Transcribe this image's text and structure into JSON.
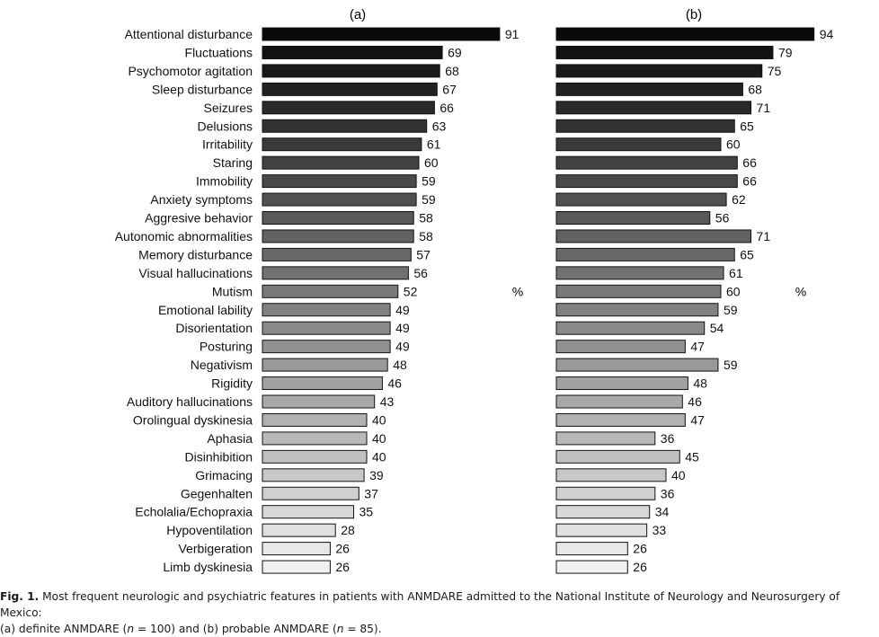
{
  "chart_data": [
    {
      "type": "bar",
      "orientation": "horizontal",
      "panel_label": "(a)",
      "unit_label": "%",
      "categories": [
        "Attentional disturbance",
        "Fluctuations",
        "Psychomotor agitation",
        "Sleep disturbance",
        "Seizures",
        "Delusions",
        "Irritability",
        "Staring",
        "Immobility",
        "Anxiety symptoms",
        "Aggresive behavior",
        "Autonomic abnormalities",
        "Memory disturbance",
        "Visual hallucinations",
        "Mutism",
        "Emotional lability",
        "Disorientation",
        "Posturing",
        "Negativism",
        "Rigidity",
        "Auditory hallucinations",
        "Orolingual dyskinesia",
        "Aphasia",
        "Disinhibition",
        "Grimacing",
        "Gegenhalten",
        "Echolalia/Echopraxia",
        "Hypoventilation",
        "Verbigeration",
        "Limb dyskinesia"
      ],
      "values": [
        91,
        69,
        68,
        67,
        66,
        63,
        61,
        60,
        59,
        59,
        58,
        58,
        57,
        56,
        52,
        49,
        49,
        49,
        48,
        46,
        43,
        40,
        40,
        40,
        39,
        37,
        35,
        28,
        26,
        26
      ],
      "xlim": [
        0,
        100
      ],
      "grid": false
    },
    {
      "type": "bar",
      "orientation": "horizontal",
      "panel_label": "(b)",
      "unit_label": "%",
      "categories": [
        "Attentional disturbance",
        "Fluctuations",
        "Psychomotor agitation",
        "Sleep disturbance",
        "Seizures",
        "Delusions",
        "Irritability",
        "Staring",
        "Immobility",
        "Anxiety symptoms",
        "Aggresive behavior",
        "Autonomic abnormalities",
        "Memory disturbance",
        "Visual hallucinations",
        "Mutism",
        "Emotional lability",
        "Disorientation",
        "Posturing",
        "Negativism",
        "Rigidity",
        "Auditory hallucinations",
        "Orolingual dyskinesia",
        "Aphasia",
        "Disinhibition",
        "Grimacing",
        "Gegenhalten",
        "Echolalia/Echopraxia",
        "Hypoventilation",
        "Verbigeration",
        "Limb dyskinesia"
      ],
      "values": [
        94,
        79,
        75,
        68,
        71,
        65,
        60,
        66,
        66,
        62,
        56,
        71,
        65,
        61,
        60,
        59,
        54,
        47,
        59,
        48,
        46,
        47,
        36,
        45,
        40,
        36,
        34,
        33,
        26,
        26
      ],
      "xlim": [
        0,
        100
      ],
      "grid": false
    }
  ],
  "caption": {
    "label": "Fig. 1.",
    "line1": "Most frequent neurologic and psychiatric features in patients with ANMDARE admitted to the National Institute of Neurology and Neurosurgery of Mexico:",
    "line2_a": "(a) definite ANMDARE (",
    "n1": "n",
    "line2_b": " = 100) and (b) probable ANMDARE (",
    "n2": "n",
    "line2_c": " = 85)."
  }
}
